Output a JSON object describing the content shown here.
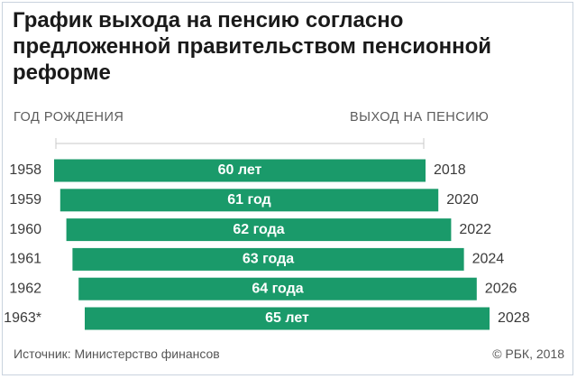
{
  "title": "График выхода на пенсию согласно предложенной правительством пенсионной реформе",
  "headers": {
    "birth_year": "ГОД РОЖДЕНИЯ",
    "retirement": "ВЫХОД НА ПЕНСИЮ"
  },
  "colors": {
    "bar": "#1a9a6a",
    "bar_text": "#ffffff",
    "label_text": "#3a3a3a",
    "axis_line": "#c8c8c8"
  },
  "chart_data": {
    "type": "bar",
    "orientation": "horizontal",
    "categories": [
      "1958",
      "1959",
      "1960",
      "1961",
      "1962",
      "1963*"
    ],
    "series": [
      {
        "values": [
          60,
          61,
          62,
          63,
          64,
          65
        ]
      }
    ],
    "bar_labels": [
      "60 лет",
      "61 год",
      "62 года",
      "63 года",
      "64 года",
      "65 лет"
    ],
    "end_labels": [
      "2018",
      "2020",
      "2022",
      "2024",
      "2026",
      "2028"
    ],
    "xlabel": "",
    "ylabel": "",
    "grid": false
  },
  "footer": {
    "source": "Источник: Министерство финансов",
    "credit": "© РБК, 2018"
  }
}
